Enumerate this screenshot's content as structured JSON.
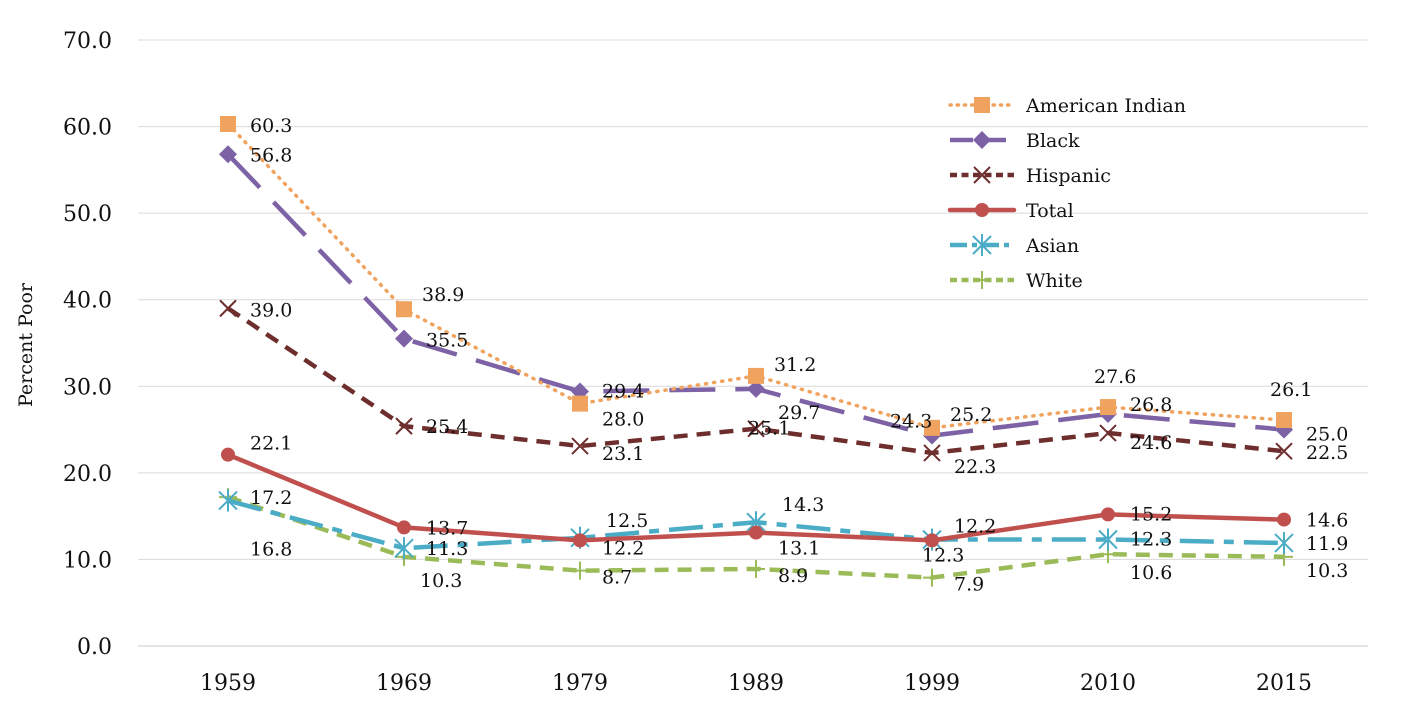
{
  "chart_data": {
    "type": "line",
    "title": "",
    "xlabel": "",
    "ylabel": "Percent Poor",
    "ylim": [
      0,
      70
    ],
    "yticks": [
      "0.0",
      "10.0",
      "20.0",
      "30.0",
      "40.0",
      "50.0",
      "60.0",
      "70.0"
    ],
    "ytick_values": [
      0,
      10,
      20,
      30,
      40,
      50,
      60,
      70
    ],
    "categories": [
      "1959",
      "1969",
      "1979",
      "1989",
      "1999",
      "2010",
      "2015"
    ],
    "grid": true,
    "legend_position": "top-right",
    "series": [
      {
        "name": "American Indian",
        "color": "#F0A35E",
        "line_style": "dotted",
        "marker": "square",
        "values": [
          60.3,
          38.9,
          28.0,
          31.2,
          25.2,
          27.6,
          26.1
        ],
        "labels": [
          "60.3",
          "38.9",
          "28.0",
          "31.2",
          "25.2",
          "27.6",
          "26.1"
        ]
      },
      {
        "name": "Black",
        "color": "#7D62A5",
        "line_style": "long-dash",
        "marker": "diamond",
        "values": [
          56.8,
          35.5,
          29.4,
          29.7,
          24.3,
          26.8,
          25.0
        ],
        "labels": [
          "56.8",
          "35.5",
          "29.4",
          "29.7",
          "24.3",
          "26.8",
          "25.0"
        ]
      },
      {
        "name": "Hispanic",
        "color": "#6E2E2E",
        "line_style": "dash",
        "marker": "x",
        "values": [
          39.0,
          25.4,
          23.1,
          25.1,
          22.3,
          24.6,
          22.5
        ],
        "labels": [
          "39.0",
          "25.4",
          "23.1",
          "25.1",
          "22.3",
          "24.6",
          "22.5"
        ]
      },
      {
        "name": "Total",
        "color": "#C0504D",
        "line_style": "solid",
        "marker": "circle",
        "values": [
          22.1,
          13.7,
          12.2,
          13.1,
          12.2,
          15.2,
          14.6
        ],
        "labels": [
          "22.1",
          "13.7",
          "12.2",
          "13.1",
          "12.2",
          "15.2",
          "14.6"
        ]
      },
      {
        "name": "Asian",
        "color": "#4BACC6",
        "line_style": "dash-dot",
        "marker": "asterisk",
        "values": [
          16.8,
          11.3,
          12.5,
          14.3,
          12.3,
          12.3,
          11.9
        ],
        "labels": [
          "16.8",
          "11.3",
          "12.5",
          "14.3",
          "12.3",
          "12.3",
          "11.9"
        ]
      },
      {
        "name": "White",
        "color": "#9BBB59",
        "line_style": "dash",
        "marker": "plus",
        "values": [
          17.2,
          10.3,
          8.7,
          8.9,
          7.9,
          10.6,
          10.3
        ],
        "labels": [
          "17.2",
          "10.3",
          "8.7",
          "8.9",
          "7.9",
          "10.6",
          "10.3"
        ]
      }
    ]
  }
}
